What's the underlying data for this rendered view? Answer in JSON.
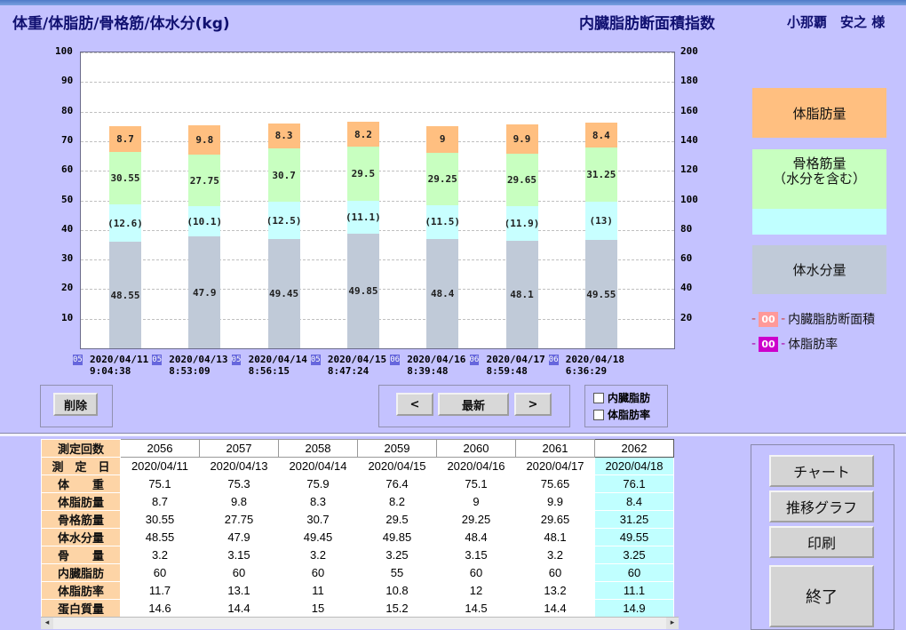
{
  "header": {
    "left_title": "体重/体脂肪/骨格筋/体水分(kg)",
    "center_title": "内臓脂肪断面積指数",
    "patient": "小那覇　安之 様"
  },
  "chart_data": {
    "type": "bar",
    "stacked": true,
    "title": "体重/体脂肪/骨格筋/体水分(kg)",
    "ylim": [
      0,
      100
    ],
    "y2lim": [
      0,
      200
    ],
    "yticks": [
      10,
      20,
      30,
      40,
      50,
      60,
      70,
      80,
      90,
      100
    ],
    "y2ticks": [
      20,
      40,
      60,
      80,
      100,
      120,
      140,
      160,
      180,
      200
    ],
    "grid": true,
    "categories": [
      "2020/04/11 9:04:38",
      "2020/04/13 8:53:09",
      "2020/04/14 8:56:15",
      "2020/04/15 8:47:24",
      "2020/04/16 8:39:48",
      "2020/04/17 8:59:48",
      "2020/04/18 6:36:29"
    ],
    "x_dates": [
      "2020/04/11",
      "2020/04/13",
      "2020/04/14",
      "2020/04/15",
      "2020/04/16",
      "2020/04/17",
      "2020/04/18"
    ],
    "x_times": [
      "9:04:38",
      "8:53:09",
      "8:56:15",
      "8:47:24",
      "8:39:48",
      "8:59:48",
      "6:36:29"
    ],
    "id_tags": [
      "05",
      "05",
      "05",
      "05",
      "06",
      "06",
      "06"
    ],
    "series": [
      {
        "name": "体水分量",
        "color": "#c0cad8",
        "values": [
          48.55,
          47.9,
          49.45,
          49.85,
          48.4,
          48.1,
          49.55
        ],
        "labels": [
          "48.55",
          "47.9",
          "49.45",
          "49.85",
          "48.4",
          "48.1",
          "49.55"
        ]
      },
      {
        "name": "水分",
        "color": "#c8ffff",
        "values": [
          -12.6,
          -10.1,
          -12.5,
          -11.1,
          -11.5,
          -11.9,
          -13
        ],
        "labels": [
          "(12.6)",
          "(10.1)",
          "(12.5)",
          "(11.1)",
          "(11.5)",
          "(11.9)",
          "(13)"
        ]
      },
      {
        "name": "骨格筋量",
        "color": "#c8ffc0",
        "values": [
          30.55,
          27.75,
          30.7,
          29.5,
          29.25,
          29.65,
          31.25
        ],
        "labels": [
          "30.55",
          "27.75",
          "30.7",
          "29.5",
          "29.25",
          "29.65",
          "31.25"
        ]
      },
      {
        "name": "体脂肪量",
        "color": "#ffbf80",
        "values": [
          8.7,
          9.8,
          8.3,
          8.2,
          9,
          9.9,
          8.4
        ],
        "labels": [
          "8.7",
          "9.8",
          "8.3",
          "8.2",
          "9",
          "9.9",
          "8.4"
        ]
      }
    ]
  },
  "legend": {
    "fat": "体脂肪量",
    "muscle": "骨格筋量\n（水分を含む）",
    "water": "体水分量",
    "visceral_marker": "00",
    "visceral_label": "内臓脂肪断面積",
    "fatrate_marker": "00",
    "fatrate_label": "体脂肪率",
    "colors": {
      "fat": "#ffbf80",
      "muscle": "#c8ffc0",
      "aqua": "#c0ffff",
      "water": "#c0cad8",
      "visceral": "#ff9999",
      "fatrate": "#cc00cc"
    }
  },
  "controls": {
    "delete": "削除",
    "prev": "<",
    "latest": "最新",
    "next": ">",
    "chk_visceral": "内臓脂肪",
    "chk_fatrate": "体脂肪率"
  },
  "table": {
    "headers": [
      "測定回数",
      "2056",
      "2057",
      "2058",
      "2059",
      "2060",
      "2061",
      "2062"
    ],
    "rows": [
      {
        "label": "測　定　日",
        "values": [
          "2020/04/11",
          "2020/04/13",
          "2020/04/14",
          "2020/04/15",
          "2020/04/16",
          "2020/04/17",
          "2020/04/18"
        ]
      },
      {
        "label": "体　　重",
        "values": [
          "75.1",
          "75.3",
          "75.9",
          "76.4",
          "75.1",
          "75.65",
          "76.1"
        ]
      },
      {
        "label": "体脂肪量",
        "values": [
          "8.7",
          "9.8",
          "8.3",
          "8.2",
          "9",
          "9.9",
          "8.4"
        ]
      },
      {
        "label": "骨格筋量",
        "values": [
          "30.55",
          "27.75",
          "30.7",
          "29.5",
          "29.25",
          "29.65",
          "31.25"
        ]
      },
      {
        "label": "体水分量",
        "values": [
          "48.55",
          "47.9",
          "49.45",
          "49.85",
          "48.4",
          "48.1",
          "49.55"
        ]
      },
      {
        "label": "骨　　量",
        "values": [
          "3.2",
          "3.15",
          "3.2",
          "3.25",
          "3.15",
          "3.2",
          "3.25"
        ]
      },
      {
        "label": "内臓脂肪",
        "values": [
          "60",
          "60",
          "60",
          "55",
          "60",
          "60",
          "60"
        ]
      },
      {
        "label": "体脂肪率",
        "values": [
          "11.7",
          "13.1",
          "11",
          "10.8",
          "12",
          "13.2",
          "11.1"
        ]
      },
      {
        "label": "蛋白質量",
        "values": [
          "14.6",
          "14.4",
          "15",
          "15.2",
          "14.5",
          "14.4",
          "14.9"
        ]
      }
    ]
  },
  "side_buttons": {
    "chart": "チャート",
    "trend": "推移グラフ",
    "print": "印刷",
    "exit": "終了"
  },
  "scroll": {
    "left": "◂",
    "right": "▸"
  }
}
